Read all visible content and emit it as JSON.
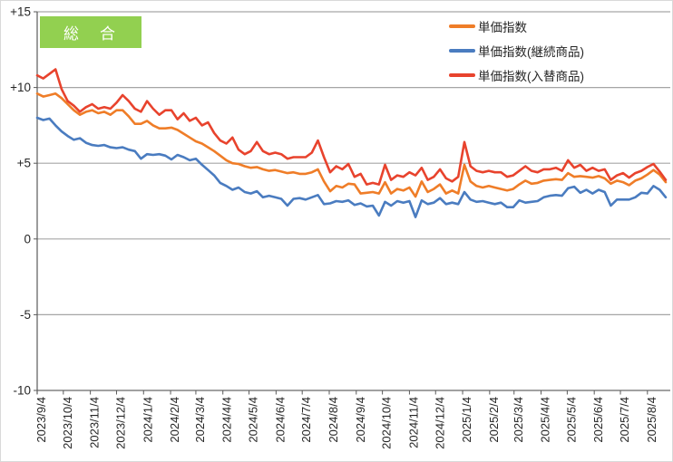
{
  "badge": {
    "label": "総　合",
    "bg_color": "#92D050",
    "text_color": "#FFFFFF"
  },
  "legend": {
    "items": [
      {
        "label": "単価指数",
        "color": "#EF7D28"
      },
      {
        "label": "単価指数(継続商品)",
        "color": "#4A7CC0"
      },
      {
        "label": "単価指数(入替商品)",
        "color": "#E8432D"
      }
    ]
  },
  "colors": {
    "gridline": "#A6A6A6",
    "axis": "#595959",
    "tick": "#595959",
    "label_text": "#262626",
    "background": "#FFFFFF",
    "frame_border": "#D9D9D9"
  },
  "chart_data": {
    "type": "line",
    "title": "総合",
    "x_unit": "week",
    "x_start_date": "2023/9/4",
    "x_tick_labels": [
      "2023/9/4",
      "2023/10/4",
      "2023/11/4",
      "2023/12/4",
      "2024/1/4",
      "2024/2/4",
      "2024/3/4",
      "2024/4/4",
      "2024/5/4",
      "2024/6/4",
      "2024/7/4",
      "2024/8/4",
      "2024/9/4",
      "2024/10/4",
      "2024/11/4",
      "2024/12/4",
      "2025/1/4",
      "2025/2/4",
      "2025/3/4",
      "2025/4/4",
      "2025/5/4",
      "2025/6/4",
      "2025/7/4",
      "2025/8/4"
    ],
    "y_ticks": {
      "values": [
        15,
        10,
        5,
        0,
        -5,
        -10
      ],
      "labels": [
        "+15",
        "+10",
        "+5",
        "0",
        "-5",
        "-10"
      ]
    },
    "ylim": [
      -10,
      15
    ],
    "grid": "horizontal",
    "legend_position": "top-center",
    "series": [
      {
        "name": "単価指数",
        "color": "#EF7D28",
        "values": [
          9.6,
          9.4,
          9.5,
          9.6,
          9.3,
          8.9,
          8.5,
          8.2,
          8.4,
          8.5,
          8.3,
          8.4,
          8.2,
          8.5,
          8.5,
          8.1,
          7.6,
          7.6,
          7.8,
          7.5,
          7.3,
          7.3,
          7.35,
          7.2,
          6.95,
          6.7,
          6.45,
          6.3,
          6.05,
          5.8,
          5.5,
          5.2,
          5.0,
          4.95,
          4.8,
          4.7,
          4.75,
          4.6,
          4.5,
          4.55,
          4.45,
          4.35,
          4.4,
          4.3,
          4.3,
          4.4,
          4.6,
          3.8,
          3.15,
          3.5,
          3.4,
          3.65,
          3.6,
          3.0,
          3.05,
          3.1,
          3.0,
          3.75,
          3.0,
          3.3,
          3.2,
          3.4,
          2.8,
          3.8,
          3.1,
          3.3,
          3.6,
          3.0,
          3.2,
          3.0,
          4.9,
          3.8,
          3.5,
          3.4,
          3.5,
          3.4,
          3.3,
          3.2,
          3.3,
          3.6,
          3.85,
          3.65,
          3.7,
          3.85,
          3.9,
          3.95,
          3.9,
          4.35,
          4.1,
          4.15,
          4.1,
          4.05,
          4.15,
          4.0,
          3.65,
          3.85,
          3.75,
          3.55,
          3.85,
          4.0,
          4.25,
          4.55,
          4.25,
          3.75
        ]
      },
      {
        "name": "単価指数(継続商品)",
        "color": "#4A7CC0",
        "values": [
          8.0,
          7.85,
          7.95,
          7.5,
          7.1,
          6.8,
          6.55,
          6.65,
          6.35,
          6.2,
          6.15,
          6.2,
          6.05,
          6.0,
          6.05,
          5.9,
          5.8,
          5.3,
          5.6,
          5.55,
          5.6,
          5.5,
          5.25,
          5.55,
          5.4,
          5.2,
          5.3,
          4.9,
          4.55,
          4.2,
          3.7,
          3.5,
          3.25,
          3.4,
          3.1,
          3.0,
          3.15,
          2.75,
          2.85,
          2.75,
          2.65,
          2.2,
          2.65,
          2.7,
          2.6,
          2.75,
          2.9,
          2.3,
          2.35,
          2.5,
          2.45,
          2.55,
          2.25,
          2.35,
          2.15,
          2.2,
          1.55,
          2.45,
          2.2,
          2.5,
          2.4,
          2.5,
          1.45,
          2.55,
          2.3,
          2.4,
          2.7,
          2.3,
          2.4,
          2.3,
          3.1,
          2.6,
          2.45,
          2.5,
          2.4,
          2.3,
          2.4,
          2.1,
          2.1,
          2.55,
          2.4,
          2.45,
          2.5,
          2.75,
          2.85,
          2.9,
          2.85,
          3.35,
          3.45,
          3.05,
          3.25,
          3.0,
          3.25,
          3.1,
          2.2,
          2.6,
          2.6,
          2.6,
          2.75,
          3.05,
          3.0,
          3.5,
          3.25,
          2.75
        ]
      },
      {
        "name": "単価指数(入替商品)",
        "color": "#E8432D",
        "values": [
          10.8,
          10.6,
          10.9,
          11.2,
          9.9,
          9.1,
          8.8,
          8.4,
          8.7,
          8.9,
          8.6,
          8.7,
          8.6,
          9.0,
          9.5,
          9.1,
          8.6,
          8.4,
          9.1,
          8.6,
          8.2,
          8.5,
          8.5,
          7.9,
          8.3,
          7.8,
          8.0,
          7.5,
          7.7,
          7.0,
          6.5,
          6.3,
          6.7,
          5.9,
          5.6,
          5.8,
          6.4,
          5.8,
          5.6,
          5.7,
          5.6,
          5.3,
          5.4,
          5.4,
          5.4,
          5.7,
          6.5,
          5.4,
          4.4,
          4.8,
          4.6,
          4.95,
          4.1,
          4.3,
          3.6,
          3.7,
          3.6,
          4.9,
          3.9,
          4.2,
          4.1,
          4.4,
          4.2,
          4.7,
          3.9,
          4.1,
          4.6,
          4.0,
          3.8,
          4.1,
          6.4,
          4.8,
          4.5,
          4.4,
          4.5,
          4.4,
          4.4,
          4.1,
          4.2,
          4.5,
          4.8,
          4.5,
          4.4,
          4.6,
          4.6,
          4.7,
          4.5,
          5.2,
          4.7,
          4.9,
          4.5,
          4.7,
          4.5,
          4.6,
          3.9,
          4.2,
          4.35,
          4.05,
          4.35,
          4.5,
          4.75,
          4.95,
          4.45,
          3.9
        ]
      }
    ]
  }
}
